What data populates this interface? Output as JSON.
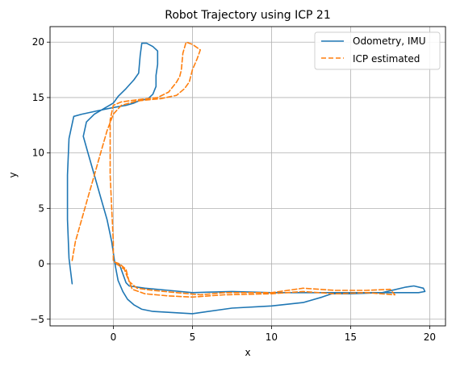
{
  "chart_data": {
    "type": "line",
    "title": "Robot Trajectory using ICP 21",
    "xlabel": "x",
    "ylabel": "y",
    "xlim": [
      -4,
      21
    ],
    "ylim": [
      -5.6,
      21.4
    ],
    "xticks": [
      0,
      5,
      10,
      15,
      20
    ],
    "yticks": [
      -5,
      0,
      5,
      10,
      15,
      20
    ],
    "grid": true,
    "legend": {
      "placement": "top-right"
    },
    "series": [
      {
        "name": "Odometry, IMU",
        "color": "#1f77b4",
        "dash": "solid",
        "points": [
          [
            -2.6,
            -1.8
          ],
          [
            -2.8,
            0.5
          ],
          [
            -2.9,
            4.0
          ],
          [
            -2.9,
            8.0
          ],
          [
            -2.8,
            11.3
          ],
          [
            -2.5,
            13.3
          ],
          [
            -2.0,
            13.5
          ],
          [
            -1.0,
            13.8
          ],
          [
            0.0,
            14.1
          ],
          [
            0.8,
            14.3
          ],
          [
            1.3,
            14.5
          ],
          [
            1.6,
            14.7
          ],
          [
            2.2,
            14.9
          ],
          [
            2.5,
            15.3
          ],
          [
            2.7,
            16.0
          ],
          [
            2.7,
            17.0
          ],
          [
            2.8,
            18.0
          ],
          [
            2.8,
            19.2
          ],
          [
            2.5,
            19.6
          ],
          [
            2.1,
            19.9
          ],
          [
            1.8,
            19.9
          ],
          [
            1.7,
            18.8
          ],
          [
            1.6,
            17.2
          ],
          [
            1.3,
            16.6
          ],
          [
            0.8,
            15.8
          ],
          [
            0.3,
            15.1
          ],
          [
            0.0,
            14.5
          ],
          [
            -0.6,
            14.0
          ],
          [
            -1.2,
            13.5
          ],
          [
            -1.7,
            12.8
          ],
          [
            -1.9,
            11.5
          ],
          [
            -1.6,
            10.0
          ],
          [
            -1.2,
            8.0
          ],
          [
            -0.8,
            6.0
          ],
          [
            -0.4,
            4.0
          ],
          [
            -0.1,
            2.0
          ],
          [
            0.1,
            0.0
          ],
          [
            0.3,
            -1.5
          ],
          [
            0.6,
            -2.5
          ],
          [
            0.9,
            -3.2
          ],
          [
            1.3,
            -3.7
          ],
          [
            1.8,
            -4.1
          ],
          [
            2.5,
            -4.3
          ],
          [
            5.0,
            -4.5
          ],
          [
            7.5,
            -4.0
          ],
          [
            10.0,
            -3.8
          ],
          [
            12.0,
            -3.5
          ],
          [
            13.2,
            -3.0
          ],
          [
            13.8,
            -2.7
          ],
          [
            15.0,
            -2.7
          ],
          [
            17.0,
            -2.6
          ],
          [
            18.5,
            -2.1
          ],
          [
            19.0,
            -2.0
          ],
          [
            19.6,
            -2.2
          ],
          [
            19.7,
            -2.5
          ],
          [
            19.3,
            -2.6
          ],
          [
            17.5,
            -2.6
          ],
          [
            15.0,
            -2.6
          ],
          [
            12.0,
            -2.6
          ],
          [
            10.0,
            -2.6
          ],
          [
            7.5,
            -2.5
          ],
          [
            5.0,
            -2.6
          ],
          [
            3.5,
            -2.4
          ],
          [
            2.0,
            -2.2
          ],
          [
            1.0,
            -2.0
          ],
          [
            0.8,
            -1.7
          ],
          [
            0.5,
            -0.5
          ],
          [
            0.4,
            -0.1
          ],
          [
            0.1,
            0.0
          ]
        ]
      },
      {
        "name": "ICP estimated",
        "color": "#ff7f0e",
        "dash": "dashed",
        "points": [
          [
            -2.6,
            0.3
          ],
          [
            -2.4,
            2.0
          ],
          [
            -2.0,
            4.0
          ],
          [
            -1.6,
            6.0
          ],
          [
            -1.2,
            8.0
          ],
          [
            -0.8,
            10.0
          ],
          [
            -0.4,
            12.0
          ],
          [
            0.0,
            13.5
          ],
          [
            0.5,
            14.3
          ],
          [
            1.5,
            14.7
          ],
          [
            3.0,
            14.9
          ],
          [
            4.0,
            15.2
          ],
          [
            4.5,
            15.8
          ],
          [
            4.8,
            16.4
          ],
          [
            5.0,
            17.5
          ],
          [
            5.3,
            18.5
          ],
          [
            5.5,
            19.3
          ],
          [
            5.0,
            19.8
          ],
          [
            4.6,
            20.0
          ],
          [
            4.4,
            19.0
          ],
          [
            4.3,
            17.5
          ],
          [
            4.2,
            16.9
          ],
          [
            4.0,
            16.4
          ],
          [
            3.5,
            15.5
          ],
          [
            2.8,
            15.0
          ],
          [
            1.5,
            14.8
          ],
          [
            0.5,
            14.6
          ],
          [
            0.0,
            14.3
          ],
          [
            -0.2,
            13.0
          ],
          [
            -0.2,
            11.0
          ],
          [
            -0.2,
            8.0
          ],
          [
            -0.1,
            5.0
          ],
          [
            0.0,
            2.0
          ],
          [
            0.0,
            0.2
          ],
          [
            0.4,
            0.0
          ],
          [
            0.8,
            -0.5
          ],
          [
            1.0,
            -1.6
          ],
          [
            1.2,
            -2.3
          ],
          [
            2.0,
            -2.7
          ],
          [
            3.5,
            -2.9
          ],
          [
            5.0,
            -3.0
          ],
          [
            7.0,
            -2.8
          ],
          [
            10.0,
            -2.7
          ],
          [
            12.0,
            -2.5
          ],
          [
            14.0,
            -2.7
          ],
          [
            16.0,
            -2.6
          ],
          [
            17.8,
            -2.8
          ],
          [
            17.5,
            -2.3
          ],
          [
            16.0,
            -2.4
          ],
          [
            14.0,
            -2.4
          ],
          [
            12.0,
            -2.2
          ],
          [
            10.0,
            -2.6
          ],
          [
            7.0,
            -2.6
          ],
          [
            5.5,
            -2.8
          ],
          [
            4.0,
            -2.6
          ],
          [
            2.5,
            -2.4
          ],
          [
            1.5,
            -2.2
          ],
          [
            1.0,
            -1.6
          ],
          [
            0.7,
            -0.5
          ],
          [
            0.1,
            0.1
          ]
        ]
      }
    ]
  }
}
